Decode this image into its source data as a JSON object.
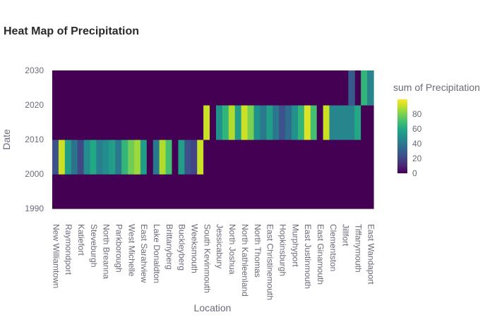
{
  "chart_data": {
    "type": "heatmap",
    "title": "Heat Map of Precipitation",
    "xlabel": "Location",
    "ylabel": "Date",
    "colorbar_title": "sum of Precipitation",
    "colorscale": "viridis",
    "zrange": [
      0,
      100
    ],
    "colorbar_ticks": [
      0,
      20,
      40,
      60,
      80
    ],
    "y_ticks": [
      1990,
      2000,
      2010,
      2020,
      2030
    ],
    "y_range": [
      1990,
      2030
    ],
    "y_bins": [
      1990,
      2000,
      2010,
      2020
    ],
    "x_tick_labels": [
      "New Williamtown",
      "Raymondport",
      "Katiefort",
      "Steveburgh",
      "North Breanna",
      "Parkborough",
      "West Michelle",
      "East Sarahview",
      "Lake Donaldton",
      "Brittanyberg",
      "Buckleyberg",
      "Weeksmouth",
      "South Kevinmouth",
      "Jessicabury",
      "North Joshua",
      "North Kathleenland",
      "North Thomas",
      "East Christinemouth",
      "Hopkinsburgh",
      "Murphyport",
      "East Justinmouth",
      "East Ginamouth",
      "Clementston",
      "Jillfort",
      "Tiffanymouth",
      "East Wandaport"
    ],
    "num_columns": 51,
    "z": [
      [
        0,
        0,
        0,
        0,
        0,
        0,
        0,
        0,
        0,
        0,
        0,
        0,
        0,
        0,
        0,
        0,
        0,
        0,
        0,
        0,
        0,
        0,
        0,
        0,
        0,
        0,
        0,
        0,
        0,
        0,
        0,
        0,
        0,
        0,
        0,
        0,
        0,
        0,
        0,
        0,
        0,
        0,
        0,
        0,
        0,
        0,
        0,
        0,
        0,
        0,
        0
      ],
      [
        25,
        92,
        55,
        38,
        22,
        48,
        60,
        42,
        48,
        55,
        40,
        65,
        78,
        85,
        55,
        0,
        40,
        88,
        70,
        0,
        55,
        25,
        20,
        92,
        0,
        0,
        0,
        0,
        0,
        0,
        0,
        0,
        0,
        0,
        0,
        0,
        0,
        0,
        0,
        0,
        0,
        0,
        0,
        0,
        0,
        0,
        0,
        0,
        0,
        0,
        0
      ],
      [
        0,
        0,
        0,
        0,
        0,
        0,
        0,
        0,
        0,
        0,
        0,
        0,
        0,
        0,
        0,
        0,
        0,
        0,
        0,
        0,
        0,
        0,
        0,
        0,
        92,
        0,
        50,
        65,
        88,
        55,
        92,
        80,
        50,
        40,
        55,
        40,
        25,
        35,
        50,
        65,
        95,
        70,
        0,
        92,
        45,
        45,
        45,
        45,
        60,
        0,
        0
      ],
      [
        0,
        0,
        0,
        0,
        0,
        0,
        0,
        0,
        0,
        0,
        0,
        0,
        0,
        0,
        0,
        0,
        0,
        0,
        0,
        0,
        0,
        0,
        0,
        0,
        0,
        0,
        0,
        0,
        0,
        0,
        0,
        0,
        0,
        0,
        0,
        0,
        0,
        0,
        0,
        0,
        0,
        0,
        0,
        0,
        0,
        0,
        0,
        0,
        0,
        65,
        80
      ]
    ],
    "z_2030_extra": [
      28,
      0,
      0,
      45
    ]
  }
}
